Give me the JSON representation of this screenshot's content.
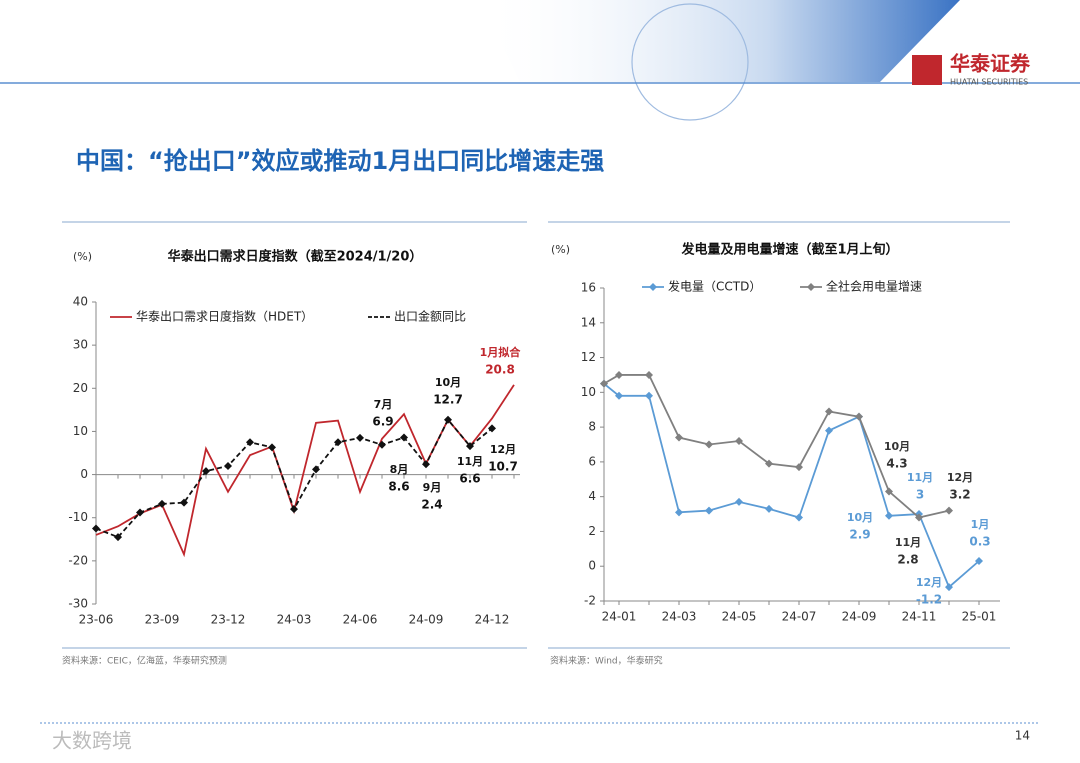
{
  "title": "中国：“抢出口”效应或推动1月出口同比增速走强",
  "logo": {
    "name": "华泰证券",
    "subtitle": "HUATAI SECURITIES"
  },
  "page_number": 14,
  "watermark": "大数跨境",
  "chart_data": [
    {
      "type": "line",
      "title": "华泰出口需求日度指数（截至2024/1/20）",
      "y_unit": "(%)",
      "source": "资料来源：CEIC，亿海蓝，华泰研究预测",
      "categories": [
        "23-06",
        null,
        null,
        "23-09",
        null,
        null,
        "23-12",
        null,
        null,
        "24-03",
        null,
        null,
        "24-06",
        null,
        null,
        "24-09",
        null,
        null,
        "24-12",
        null
      ],
      "ylim": [
        -30,
        40
      ],
      "yticks": [
        -30,
        -20,
        -10,
        0,
        10,
        20,
        30,
        40
      ],
      "series": [
        {
          "name": "华泰出口需求日度指数（HDET）",
          "color": "#c0272d",
          "dash": false,
          "values": [
            -14,
            -12,
            -9,
            -7,
            -18.5,
            6,
            -4,
            4.5,
            6.5,
            -8.5,
            12,
            12.5,
            -4,
            8.3,
            14,
            2.5,
            12.7,
            6.6,
            13,
            20.8
          ]
        },
        {
          "name": "出口金额同比",
          "color": "#111111",
          "dash": true,
          "values": [
            -12.5,
            -14.5,
            -8.8,
            -6.8,
            -6.5,
            0.8,
            2,
            7.5,
            6.3,
            -8,
            1.2,
            7.5,
            8.5,
            6.9,
            8.6,
            2.4,
            12.7,
            6.6,
            10.7,
            null
          ]
        }
      ],
      "annotations": [
        {
          "text": "7月",
          "value": 6.9,
          "color": "#111111"
        },
        {
          "text": "8月",
          "value": 8.6,
          "color": "#111111"
        },
        {
          "text": "9月",
          "value": 2.4,
          "color": "#111111"
        },
        {
          "text": "10月",
          "value": 12.7,
          "color": "#111111"
        },
        {
          "text": "11月",
          "value": 6.6,
          "color": "#111111"
        },
        {
          "text": "12月",
          "value": 10.7,
          "color": "#111111"
        },
        {
          "text": "1月拟合",
          "value": 20.8,
          "color": "#c0272d"
        }
      ]
    },
    {
      "type": "line",
      "title": "发电量及用电量增速（截至1月上旬）",
      "y_unit": "(%)",
      "source": "资料来源：Wind，华泰研究",
      "categories": [
        null,
        "24-01",
        null,
        "24-03",
        null,
        "24-05",
        null,
        "24-07",
        null,
        "24-09",
        null,
        "24-11",
        null,
        "25-01"
      ],
      "ylim": [
        -2,
        16
      ],
      "yticks": [
        -2,
        0,
        2,
        4,
        6,
        8,
        10,
        12,
        14,
        16
      ],
      "series": [
        {
          "name": "发电量（CCTD）",
          "color": "#5b9bd5",
          "dash": false,
          "values": [
            10.5,
            9.8,
            9.8,
            3.1,
            3.2,
            3.7,
            3.3,
            2.8,
            7.8,
            8.6,
            2.9,
            3.0,
            -1.2,
            0.3
          ]
        },
        {
          "name": "全社会用电量增速",
          "color": "#808080",
          "dash": false,
          "values": [
            10.5,
            11,
            11,
            7.4,
            7,
            7.2,
            5.9,
            5.7,
            8.9,
            8.6,
            4.3,
            2.8,
            3.2,
            null
          ]
        }
      ],
      "annotations": [
        {
          "text": "10月",
          "value": 2.9,
          "color": "#5b9bd5"
        },
        {
          "text": "10月",
          "value": 4.3,
          "color": "#333333"
        },
        {
          "text": "11月",
          "value": 3.0,
          "color": "#5b9bd5"
        },
        {
          "text": "11月",
          "value": 2.8,
          "color": "#333333"
        },
        {
          "text": "12月",
          "value": 3.2,
          "color": "#333333"
        },
        {
          "text": "12月",
          "value": -1.2,
          "color": "#5b9bd5"
        },
        {
          "text": "1月",
          "value": 0.3,
          "color": "#5b9bd5"
        }
      ]
    }
  ]
}
